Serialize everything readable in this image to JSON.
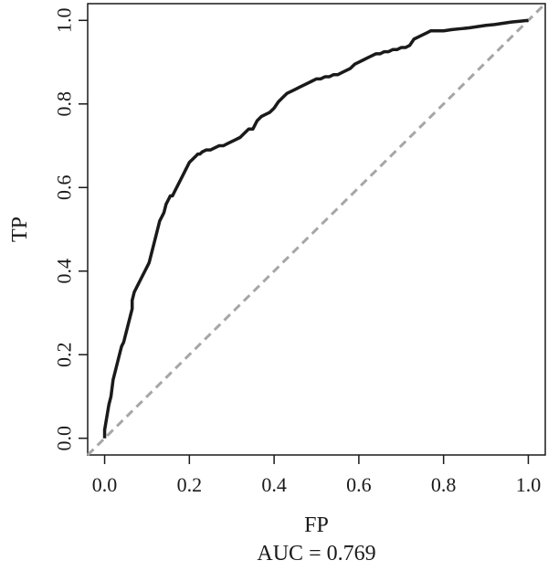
{
  "chart_data": {
    "type": "line",
    "title": "",
    "xlabel": "FP",
    "ylabel": "TP",
    "annotation": "AUC = 0.769",
    "xlim": [
      -0.04,
      1.04
    ],
    "ylim": [
      -0.04,
      1.04
    ],
    "xticks": [
      0.0,
      0.2,
      0.4,
      0.6,
      0.8,
      1.0
    ],
    "yticks": [
      0.0,
      0.2,
      0.4,
      0.6,
      0.8,
      1.0
    ],
    "xtick_labels": [
      "0.0",
      "0.2",
      "0.4",
      "0.6",
      "0.8",
      "1.0"
    ],
    "ytick_labels": [
      "0.0",
      "0.2",
      "0.4",
      "0.6",
      "0.8",
      "1.0"
    ],
    "grid": false,
    "series": [
      {
        "color": "#1a1a1a",
        "style": "solid",
        "x": [
          0.0,
          0.0,
          0.005,
          0.01,
          0.015,
          0.02,
          0.025,
          0.03,
          0.035,
          0.04,
          0.045,
          0.05,
          0.055,
          0.06,
          0.065,
          0.065,
          0.07,
          0.075,
          0.08,
          0.085,
          0.09,
          0.095,
          0.1,
          0.105,
          0.11,
          0.115,
          0.12,
          0.125,
          0.13,
          0.135,
          0.14,
          0.145,
          0.15,
          0.155,
          0.16,
          0.165,
          0.17,
          0.175,
          0.18,
          0.185,
          0.19,
          0.195,
          0.2,
          0.205,
          0.21,
          0.215,
          0.22,
          0.225,
          0.23,
          0.24,
          0.25,
          0.26,
          0.27,
          0.28,
          0.29,
          0.3,
          0.31,
          0.32,
          0.33,
          0.34,
          0.35,
          0.36,
          0.37,
          0.38,
          0.39,
          0.4,
          0.41,
          0.42,
          0.43,
          0.44,
          0.45,
          0.46,
          0.47,
          0.48,
          0.49,
          0.5,
          0.51,
          0.52,
          0.53,
          0.54,
          0.55,
          0.56,
          0.57,
          0.58,
          0.59,
          0.6,
          0.61,
          0.62,
          0.63,
          0.64,
          0.65,
          0.66,
          0.67,
          0.68,
          0.69,
          0.7,
          0.71,
          0.72,
          0.73,
          0.74,
          0.75,
          0.76,
          0.77,
          0.78,
          0.8,
          0.82,
          0.84,
          0.86,
          0.88,
          0.9,
          0.92,
          0.94,
          0.96,
          0.98,
          1.0
        ],
        "y": [
          0.0,
          0.02,
          0.05,
          0.08,
          0.1,
          0.14,
          0.16,
          0.18,
          0.2,
          0.22,
          0.23,
          0.25,
          0.27,
          0.29,
          0.31,
          0.33,
          0.35,
          0.36,
          0.37,
          0.38,
          0.39,
          0.4,
          0.41,
          0.42,
          0.44,
          0.46,
          0.48,
          0.5,
          0.52,
          0.53,
          0.54,
          0.56,
          0.57,
          0.58,
          0.58,
          0.59,
          0.6,
          0.61,
          0.62,
          0.63,
          0.64,
          0.65,
          0.66,
          0.665,
          0.67,
          0.675,
          0.68,
          0.68,
          0.685,
          0.69,
          0.69,
          0.695,
          0.7,
          0.7,
          0.705,
          0.71,
          0.715,
          0.72,
          0.73,
          0.74,
          0.74,
          0.76,
          0.77,
          0.775,
          0.78,
          0.79,
          0.805,
          0.815,
          0.825,
          0.83,
          0.835,
          0.84,
          0.845,
          0.85,
          0.855,
          0.86,
          0.86,
          0.865,
          0.865,
          0.87,
          0.87,
          0.875,
          0.88,
          0.885,
          0.895,
          0.9,
          0.905,
          0.91,
          0.915,
          0.92,
          0.92,
          0.925,
          0.925,
          0.93,
          0.93,
          0.935,
          0.935,
          0.94,
          0.955,
          0.96,
          0.965,
          0.97,
          0.975,
          0.975,
          0.975,
          0.978,
          0.98,
          0.982,
          0.985,
          0.988,
          0.99,
          0.993,
          0.996,
          0.998,
          1.0
        ]
      },
      {
        "color": "#a6a6a6",
        "style": "dashed",
        "x": [
          -0.04,
          1.04
        ],
        "y": [
          -0.04,
          1.04
        ]
      }
    ]
  }
}
